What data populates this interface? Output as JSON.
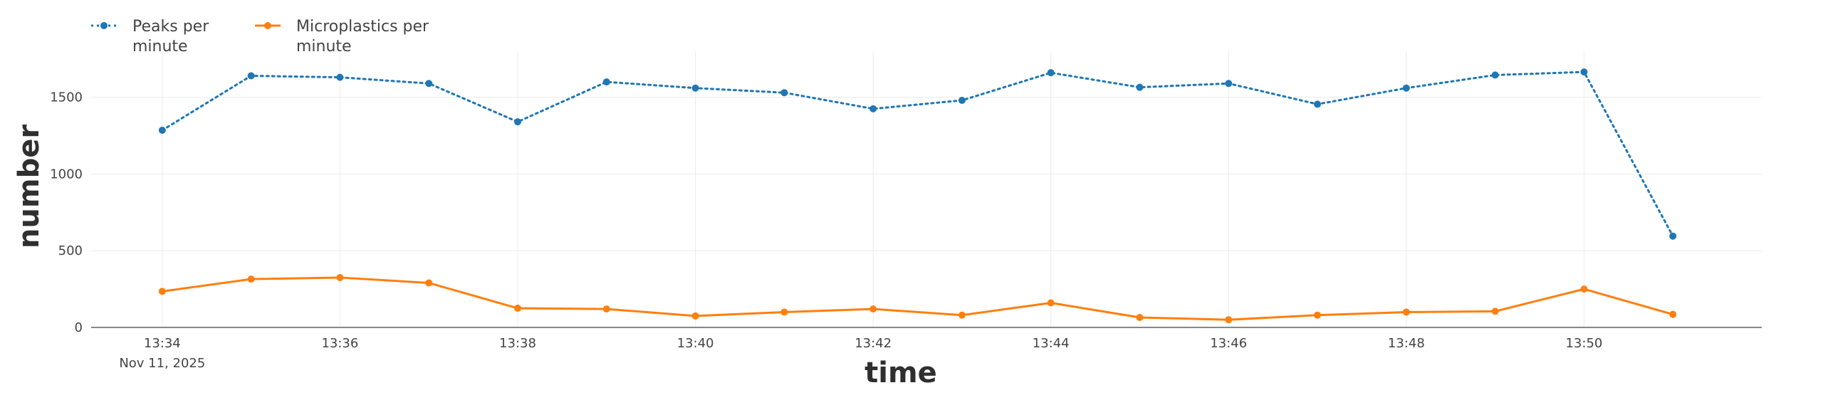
{
  "chart_data": {
    "type": "line",
    "xlabel": "time",
    "ylabel": "number",
    "x": [
      "13:34",
      "13:35",
      "13:36",
      "13:37",
      "13:38",
      "13:39",
      "13:40",
      "13:41",
      "13:42",
      "13:43",
      "13:44",
      "13:45",
      "13:46",
      "13:47",
      "13:48",
      "13:49",
      "13:50",
      "13:51"
    ],
    "x_ticks": [
      {
        "x": "13:34",
        "label": "13:34",
        "sublabel": "Nov 11, 2025"
      },
      {
        "x": "13:36",
        "label": "13:36"
      },
      {
        "x": "13:38",
        "label": "13:38"
      },
      {
        "x": "13:40",
        "label": "13:40"
      },
      {
        "x": "13:42",
        "label": "13:42"
      },
      {
        "x": "13:44",
        "label": "13:44"
      },
      {
        "x": "13:46",
        "label": "13:46"
      },
      {
        "x": "13:48",
        "label": "13:48"
      },
      {
        "x": "13:50",
        "label": "13:50"
      }
    ],
    "xlim": [
      "13:33.2",
      "13:52.0"
    ],
    "y_ticks": [
      0,
      500,
      1000,
      1500
    ],
    "ylim": [
      0,
      1800
    ],
    "grid": true,
    "legend": "top-left",
    "series": [
      {
        "name": "Peaks per minute",
        "legend_lines": [
          "Peaks per",
          "minute"
        ],
        "color": "#1f77b4",
        "dash": "dotted",
        "values": [
          1285,
          1640,
          1630,
          1590,
          1340,
          1600,
          1560,
          1530,
          1425,
          1480,
          1660,
          1565,
          1590,
          1455,
          1560,
          1645,
          1665,
          595
        ]
      },
      {
        "name": "Microplastics per minute",
        "legend_lines": [
          "Microplastics per",
          "minute"
        ],
        "color": "#ff7f0e",
        "dash": "solid",
        "values": [
          235,
          315,
          325,
          290,
          125,
          120,
          75,
          100,
          120,
          80,
          160,
          65,
          50,
          80,
          100,
          105,
          250,
          85
        ]
      }
    ]
  }
}
